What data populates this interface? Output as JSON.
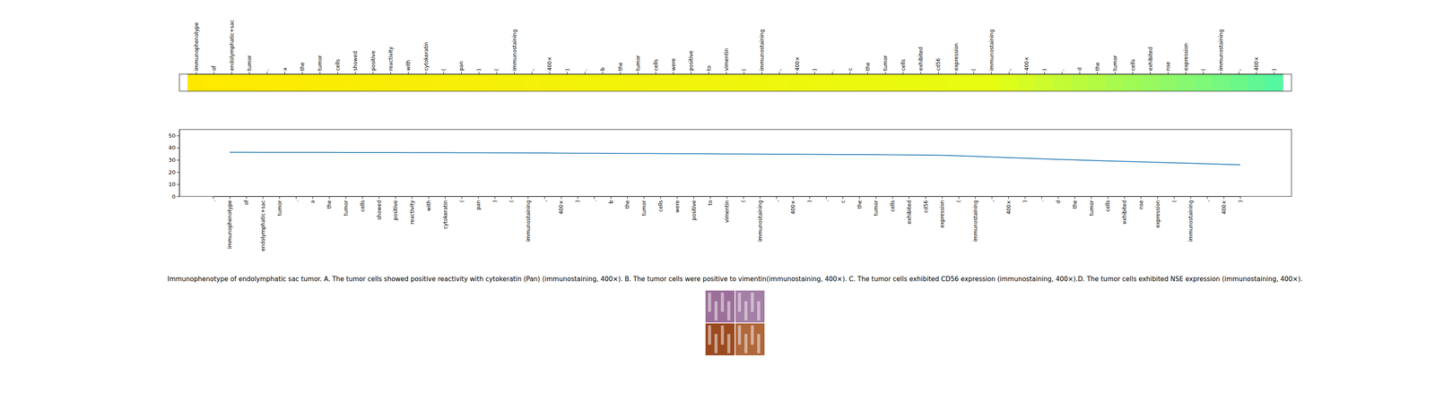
{
  "chart_data": [
    {
      "type": "heatmap",
      "categories": [
        "immunophenotype",
        "of",
        "endolymphatic+sac",
        "tumor",
        ".",
        "a",
        "the",
        "tumor",
        "cells",
        "showed",
        "positive",
        "reactivity",
        "with",
        "cytokeratin",
        "(",
        "pan",
        ")",
        "(",
        "immunostaining",
        ",",
        "400×",
        ")",
        ".",
        "b",
        "the",
        "tumor",
        "cells",
        "were",
        "positive",
        "to",
        "vimentin",
        "(",
        "immunostaining",
        ",",
        "400×",
        ")",
        ".",
        "c",
        "the",
        "tumor",
        "cells",
        "exhibited",
        "cd56",
        "expression",
        "(",
        "immunostaining",
        ",",
        "400×",
        ")",
        ".",
        "d",
        "the",
        "tumor",
        "cells",
        "exhibited",
        "nse",
        "expression",
        "(",
        "immunostaining",
        ",",
        "400×",
        ")"
      ],
      "values": [
        0,
        0.02,
        0.04,
        0.05,
        0.06,
        0.07,
        0.08,
        0.09,
        0.1,
        0.11,
        0.12,
        0.13,
        0.14,
        0.15,
        0.16,
        0.17,
        0.18,
        0.19,
        0.2,
        0.21,
        0.22,
        0.23,
        0.24,
        0.25,
        0.26,
        0.27,
        0.28,
        0.29,
        0.3,
        0.31,
        0.32,
        0.33,
        0.34,
        0.35,
        0.36,
        0.37,
        0.38,
        0.39,
        0.4,
        0.41,
        0.42,
        0.43,
        0.44,
        0.46,
        0.48,
        0.5,
        0.53,
        0.56,
        0.59,
        0.62,
        0.65,
        0.68,
        0.71,
        0.74,
        0.77,
        0.8,
        0.83,
        0.86,
        0.89,
        0.92,
        0.96,
        1.0
      ],
      "colormap": [
        "#ffe800",
        "#e6fd12",
        "#55f7a0"
      ],
      "tick_labels": "x"
    },
    {
      "type": "line",
      "categories": [
        ".",
        "immunophenotype",
        "of",
        "endolymphatic+sac",
        "tumor",
        ".",
        "a",
        "the",
        "tumor",
        "cells",
        "showed",
        "positive",
        "reactivity",
        "with",
        "cytokeratin",
        "(",
        "pan",
        ")",
        "(",
        "immunostaining",
        ",",
        "400×",
        ")",
        ".",
        "b",
        "the",
        "tumor",
        "cells",
        "were",
        "positive",
        "to",
        "vimentin",
        "(",
        "immunostaining",
        ",",
        "400×",
        ")",
        ".",
        "c",
        "the",
        "tumor",
        "cells",
        "exhibited",
        "cd56",
        "expression",
        "(",
        "immunostaining",
        ",",
        "400×",
        ")",
        ".",
        "d",
        "the",
        "tumor",
        "cells",
        "exhibited",
        "nse",
        "expression",
        "(",
        "immunostaining",
        ",",
        "400×",
        ")"
      ],
      "series": [
        {
          "color": "#1f77b4",
          "values": [
            null,
            36.3,
            36.3,
            36.2,
            36.2,
            36.2,
            36.2,
            36.2,
            36.1,
            36.1,
            36.1,
            36.1,
            36.0,
            36.0,
            36.0,
            35.9,
            35.9,
            35.8,
            35.8,
            35.7,
            35.7,
            35.6,
            35.5,
            35.5,
            35.4,
            35.3,
            35.3,
            35.2,
            35.1,
            35.1,
            35.0,
            34.9,
            34.9,
            34.8,
            34.7,
            34.7,
            34.6,
            34.5,
            34.4,
            34.4,
            34.3,
            34.2,
            34.1,
            34.0,
            33.8,
            33.4,
            32.9,
            32.4,
            31.9,
            31.4,
            30.9,
            30.4,
            30.0,
            29.6,
            29.2,
            28.8,
            28.4,
            28.0,
            27.6,
            27.2,
            26.8,
            26.4,
            26.0
          ]
        }
      ],
      "ylim": [
        0,
        55
      ],
      "yticks": [
        0,
        10,
        20,
        30,
        40,
        50
      ]
    }
  ],
  "caption": "Immunophenotype of endolymphatic sac tumor. A. The tumor cells showed positive reactivity with cytokeratin (Pan) (immunostaining, 400×). B. The tumor cells were positive to vimentin(immunostaining, 400×). C. The tumor cells exhibited CD56 expression (immunostaining, 400×).D. The tumor cells exhibited NSE expression (immunostaining, 400×)."
}
